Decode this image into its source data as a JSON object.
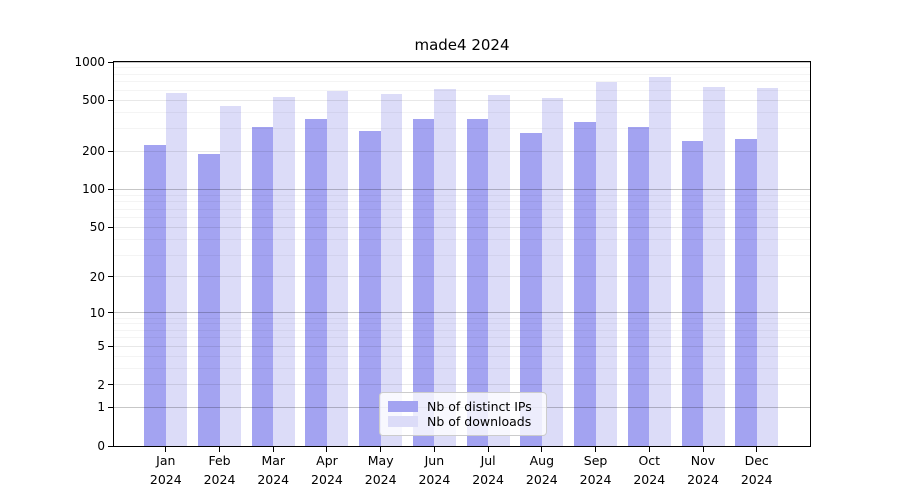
{
  "title": "made4 2024",
  "chart_data": {
    "type": "bar",
    "title": "made4 2024",
    "categories": [
      "Jan",
      "Feb",
      "Mar",
      "Apr",
      "May",
      "Jun",
      "Jul",
      "Aug",
      "Sep",
      "Oct",
      "Nov",
      "Dec"
    ],
    "x_tick_second_line": "2024",
    "series": [
      {
        "name": "Nb of distinct IPs",
        "color": "#a3a3f1",
        "values": [
          225,
          192,
          310,
          355,
          290,
          355,
          355,
          280,
          340,
          308,
          240,
          250
        ]
      },
      {
        "name": "Nb of downloads",
        "color": "#dcdcf8",
        "values": [
          570,
          455,
          535,
          590,
          560,
          620,
          550,
          525,
          695,
          760,
          635,
          625
        ]
      }
    ],
    "yscale": "symlog",
    "ylim": [
      0,
      1000
    ],
    "yticks": [
      0,
      1,
      2,
      5,
      10,
      20,
      50,
      100,
      200,
      500,
      1000
    ],
    "ytick_labels": [
      "0",
      "1",
      "2",
      "5",
      "10",
      "20",
      "50",
      "100",
      "200",
      "500",
      "1000"
    ],
    "minor_yticks": [
      3,
      4,
      6,
      7,
      8,
      9,
      30,
      40,
      60,
      70,
      80,
      90,
      300,
      400,
      600,
      700,
      800,
      900
    ],
    "grid": true,
    "legend_position": "lower center",
    "background_color": "#ffffff",
    "axis_color": "#000000"
  },
  "legend": {
    "items": [
      {
        "label": "Nb of distinct IPs"
      },
      {
        "label": "Nb of downloads"
      }
    ]
  }
}
